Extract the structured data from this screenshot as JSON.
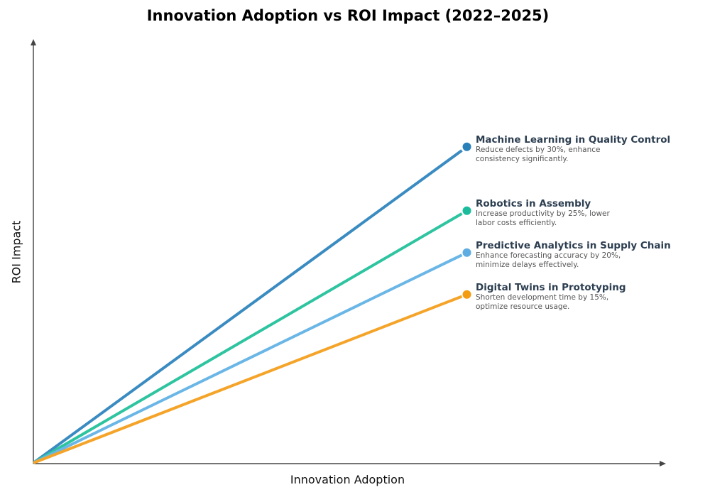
{
  "chart_data": {
    "type": "line",
    "title": "Innovation Adoption vs ROI Impact (2022–2025)",
    "xlabel": "Innovation Adoption",
    "ylabel": "ROI Impact",
    "xlim": [
      0,
      1
    ],
    "ylim": [
      0,
      1
    ],
    "grid": false,
    "ticks": false,
    "series": [
      {
        "name": "Machine Learning in Quality Control",
        "description": "Reduce defects by 30%, enhance consistency significantly.",
        "x": [
          0,
          0.686
        ],
        "y": [
          0,
          0.747
        ],
        "line_color": "#3a8bc1",
        "marker_color": "#2980b9"
      },
      {
        "name": "Robotics in Assembly",
        "description": "Increase productivity by 25%, lower labor costs efficiently.",
        "x": [
          0,
          0.686
        ],
        "y": [
          0,
          0.596
        ],
        "line_color": "#2ec4a0",
        "marker_color": "#1abc9c"
      },
      {
        "name": "Predictive Analytics in Supply Chain",
        "description": "Enhance forecasting accuracy by 20%, minimize delays effectively.",
        "x": [
          0,
          0.686
        ],
        "y": [
          0,
          0.497
        ],
        "line_color": "#6ab6e6",
        "marker_color": "#5dade2"
      },
      {
        "name": "Digital Twins in Prototyping",
        "description": "Shorten development time by 15%, optimize resource usage.",
        "x": [
          0,
          0.686
        ],
        "y": [
          0,
          0.398
        ],
        "line_color": "#f5a42a",
        "marker_color": "#f39c12"
      }
    ]
  }
}
